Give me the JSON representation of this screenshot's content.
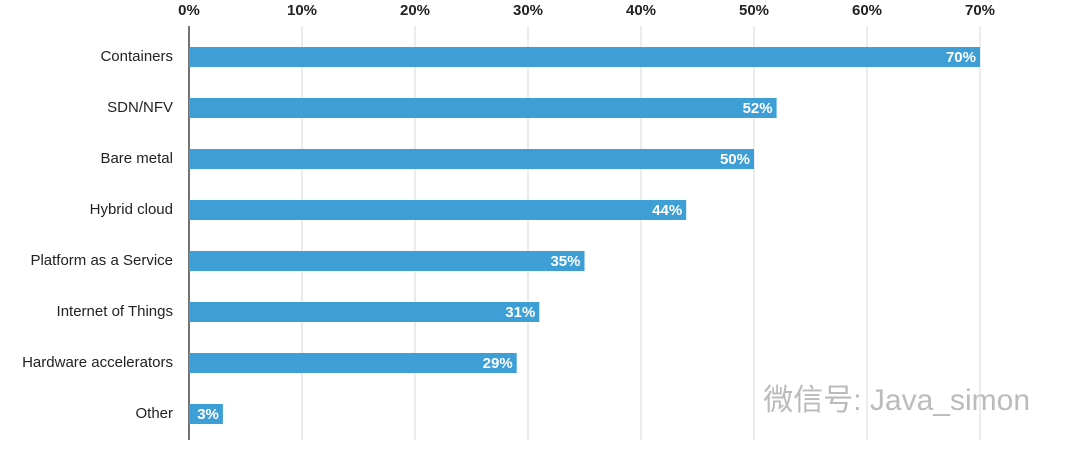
{
  "chart_data": {
    "type": "bar",
    "orientation": "horizontal",
    "categories": [
      "Containers",
      "SDN/NFV",
      "Bare metal",
      "Hybrid cloud",
      "Platform as a Service",
      "Internet of Things",
      "Hardware accelerators",
      "Other"
    ],
    "values": [
      70,
      52,
      50,
      44,
      35,
      31,
      29,
      3
    ],
    "value_labels": [
      "70%",
      "52%",
      "50%",
      "44%",
      "35%",
      "31%",
      "29%",
      "3%"
    ],
    "color": "#3d9fd6",
    "xlim": [
      0,
      70
    ],
    "xticks": [
      {
        "value": 0,
        "label": "0%"
      },
      {
        "value": 10,
        "label": "10%"
      },
      {
        "value": 20,
        "label": "20%"
      },
      {
        "value": 30,
        "label": "30%"
      },
      {
        "value": 40,
        "label": "40%"
      },
      {
        "value": 50,
        "label": "50%"
      },
      {
        "value": 60,
        "label": "60%"
      },
      {
        "value": 70,
        "label": "70%"
      }
    ],
    "grid": true,
    "watermark": "微信号: Java_simon"
  }
}
